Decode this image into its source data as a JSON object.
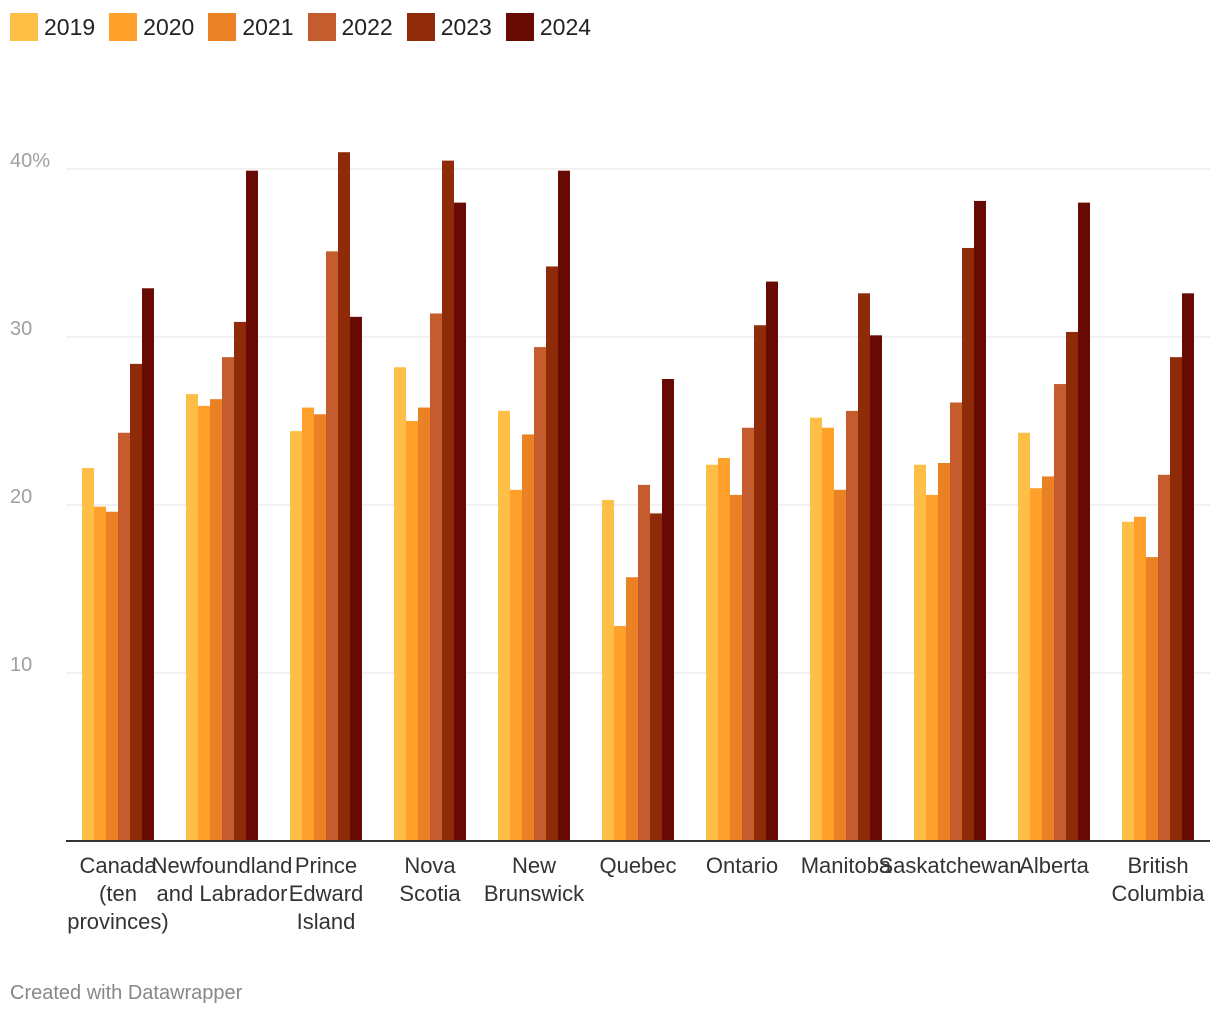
{
  "chart_data": {
    "type": "bar",
    "title": "",
    "xlabel": "",
    "ylabel": "",
    "ylim": [
      0,
      44
    ],
    "y_ticks": [
      10,
      20,
      30,
      40
    ],
    "y_tick_labels": [
      "10",
      "20",
      "30",
      "40%"
    ],
    "categories": [
      [
        "Canada",
        "(ten",
        "provinces)"
      ],
      [
        "Newfoundland",
        "and Labrador"
      ],
      [
        "Prince",
        "Edward",
        "Island"
      ],
      [
        "Nova",
        "Scotia"
      ],
      [
        "New",
        "Brunswick"
      ],
      [
        "Quebec"
      ],
      [
        "Ontario"
      ],
      [
        "Manitoba"
      ],
      [
        "Saskatchewan"
      ],
      [
        "Alberta"
      ],
      [
        "British",
        "Columbia"
      ]
    ],
    "series": [
      {
        "name": "2019",
        "color": "#ffbf47",
        "values": [
          22.2,
          26.6,
          24.4,
          28.2,
          25.6,
          20.3,
          22.4,
          25.2,
          22.4,
          24.3,
          19.0
        ]
      },
      {
        "name": "2020",
        "color": "#ffa02a",
        "values": [
          19.9,
          25.9,
          25.8,
          25.0,
          20.9,
          12.8,
          22.8,
          24.6,
          20.6,
          21.0,
          19.3
        ]
      },
      {
        "name": "2021",
        "color": "#ea8124",
        "values": [
          19.6,
          26.3,
          25.4,
          25.8,
          24.2,
          15.7,
          20.6,
          20.9,
          22.5,
          21.7,
          16.9
        ]
      },
      {
        "name": "2022",
        "color": "#c45c2e",
        "values": [
          24.3,
          28.8,
          35.1,
          31.4,
          29.4,
          21.2,
          24.6,
          25.6,
          26.1,
          27.2,
          21.8
        ]
      },
      {
        "name": "2023",
        "color": "#8f2b08",
        "values": [
          28.4,
          30.9,
          41.0,
          40.5,
          34.2,
          19.5,
          30.7,
          32.6,
          35.3,
          30.3,
          28.8
        ]
      },
      {
        "name": "2024",
        "color": "#6a0a05",
        "values": [
          32.9,
          39.9,
          31.2,
          38.0,
          39.9,
          27.5,
          33.3,
          30.1,
          38.1,
          38.0,
          32.6
        ]
      }
    ]
  },
  "footer": {
    "credit": "Created with Datawrapper"
  }
}
